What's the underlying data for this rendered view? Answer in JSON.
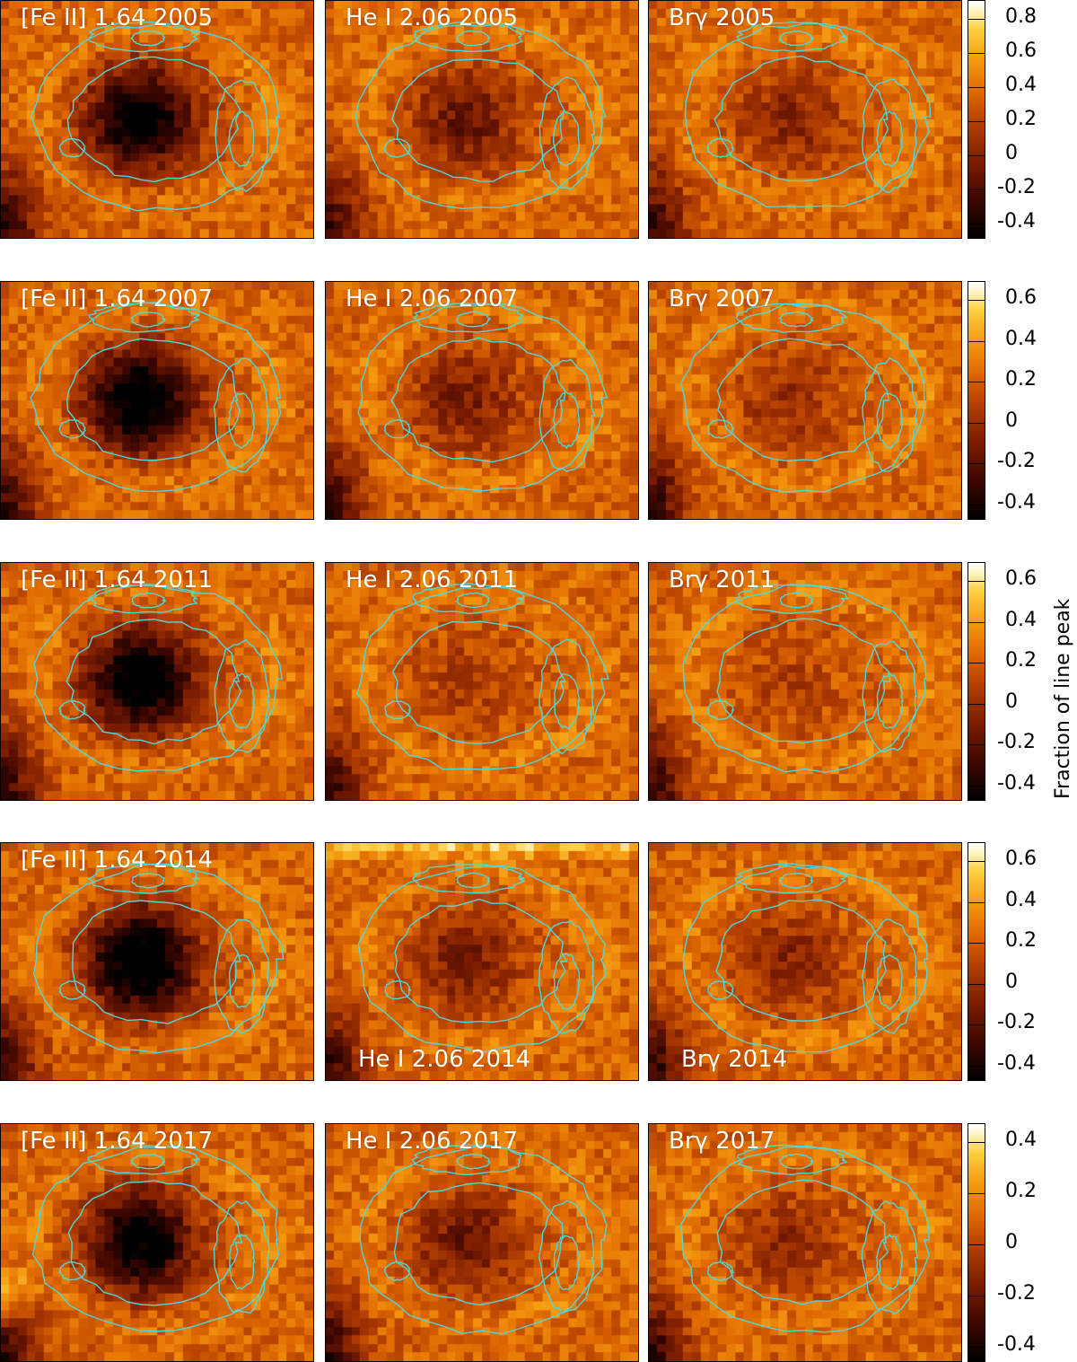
{
  "rows": [
    {
      "panels": [
        {
          "label": "[Fe II] 1.64 2005",
          "position": "top"
        },
        {
          "label": "He I 2.06 2005",
          "position": "top"
        },
        {
          "label": "Brγ 2005",
          "position": "top"
        }
      ],
      "colorbar": {
        "ticks": [
          "0.8",
          "0.6",
          "0.4",
          "0.2",
          "0",
          "-0.2",
          "-0.4"
        ]
      }
    },
    {
      "panels": [
        {
          "label": "[Fe II] 1.64 2007",
          "position": "top"
        },
        {
          "label": "He I 2.06 2007",
          "position": "top"
        },
        {
          "label": "Brγ 2007",
          "position": "top"
        }
      ],
      "colorbar": {
        "ticks": [
          "0.6",
          "0.4",
          "0.2",
          "0",
          "-0.2",
          "-0.4"
        ]
      }
    },
    {
      "panels": [
        {
          "label": "[Fe II] 1.64 2011",
          "position": "top"
        },
        {
          "label": "He I 2.06 2011",
          "position": "top"
        },
        {
          "label": "Brγ 2011",
          "position": "top"
        }
      ],
      "colorbar": {
        "ticks": [
          "0.6",
          "0.4",
          "0.2",
          "0",
          "-0.2",
          "-0.4"
        ]
      }
    },
    {
      "panels": [
        {
          "label": "[Fe II] 1.64 2014",
          "position": "top"
        },
        {
          "label": "He I 2.06 2014",
          "position": "bottom"
        },
        {
          "label": "Brγ 2014",
          "position": "bottom"
        }
      ],
      "colorbar": {
        "ticks": [
          "0.6",
          "0.4",
          "0.2",
          "0",
          "-0.2",
          "-0.4"
        ]
      }
    },
    {
      "panels": [
        {
          "label": "[Fe II] 1.64 2017",
          "position": "top"
        },
        {
          "label": "He I 2.06 2017",
          "position": "top"
        },
        {
          "label": "Brγ 2017",
          "position": "top"
        }
      ],
      "colorbar": {
        "ticks": [
          "0.4",
          "0.2",
          "0",
          "-0.2",
          "-0.4"
        ]
      }
    }
  ],
  "colorbar_label": "Fraction of line peak",
  "colors": {
    "contour": "#4fd8d8",
    "colormap": [
      "#000000",
      "#7a1c00",
      "#e06a00",
      "#fbd040",
      "#ffffff"
    ]
  }
}
